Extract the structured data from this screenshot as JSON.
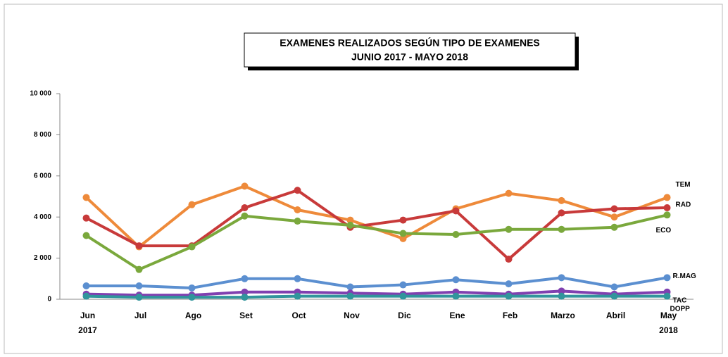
{
  "chart_data": {
    "type": "line",
    "title": "EXAMENES   REALIZADOS  SEGÚN  TIPO  DE EXAMENES",
    "subtitle": "JUNIO  2017  - MAYO  2018",
    "categories": [
      "Jun",
      "Jul",
      "Ago",
      "Set",
      "Oct",
      "Nov",
      "Dic",
      "Ene",
      "Feb",
      "Marzo",
      "Abril",
      "May"
    ],
    "year_labels": [
      "2017",
      "2018"
    ],
    "ylim": [
      0,
      10000
    ],
    "yticks": [
      0,
      {
        "value": 2000,
        "label": "2 000"
      },
      {
        "value": 4000,
        "label": "4 000"
      },
      {
        "value": 6000,
        "label": "6 000"
      },
      {
        "value": 8000,
        "label": "8 000"
      },
      {
        "value": 10000,
        "label": "10 000"
      }
    ],
    "series": [
      {
        "name": "TEM",
        "color": "#ee8a3a",
        "values": [
          4950,
          2550,
          4600,
          5500,
          4350,
          3850,
          2950,
          4400,
          5150,
          4800,
          4000,
          4950
        ]
      },
      {
        "name": "RAD",
        "color": "#c83a3a",
        "values": [
          3950,
          2600,
          2600,
          4450,
          5300,
          3500,
          3850,
          4300,
          1950,
          4200,
          4400,
          4450
        ]
      },
      {
        "name": "ECO",
        "color": "#7aa83c",
        "values": [
          3100,
          1450,
          2550,
          4050,
          3800,
          3600,
          3200,
          3150,
          3400,
          3400,
          3500,
          4100
        ]
      },
      {
        "name": "R.MAG",
        "color": "#5b8fd0",
        "values": [
          650,
          650,
          550,
          1000,
          1000,
          600,
          700,
          950,
          750,
          1050,
          600,
          1050
        ]
      },
      {
        "name": "TAC",
        "color": "#8040b0",
        "values": [
          250,
          200,
          200,
          350,
          350,
          300,
          250,
          350,
          250,
          400,
          250,
          350
        ]
      },
      {
        "name": "DOPP",
        "color": "#31959c",
        "values": [
          150,
          100,
          100,
          100,
          150,
          150,
          150,
          150,
          150,
          150,
          150,
          150
        ]
      }
    ]
  }
}
